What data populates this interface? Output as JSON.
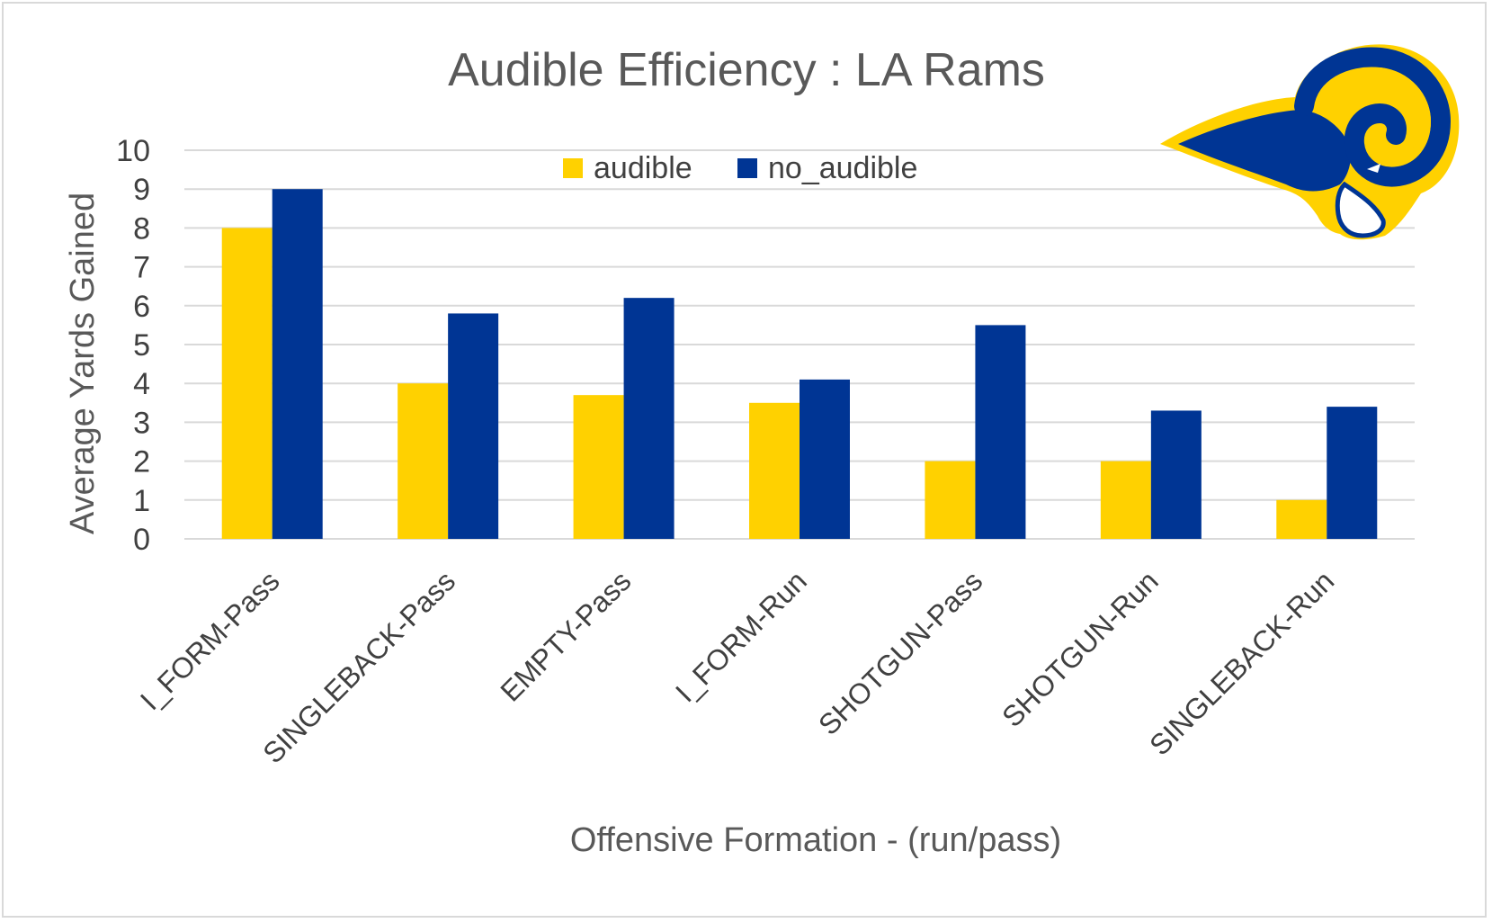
{
  "chart_data": {
    "type": "bar",
    "title": "Audible Efficiency : LA Rams",
    "xlabel": "Offensive Formation - (run/pass)",
    "ylabel": "Average Yards Gained",
    "categories": [
      "I_FORM-Pass",
      "SINGLEBACK-Pass",
      "EMPTY-Pass",
      "I_FORM-Run",
      "SHOTGUN-Pass",
      "SHOTGUN-Run",
      "SINGLEBACK-Run"
    ],
    "series": [
      {
        "name": "audible",
        "color": "#FFD100",
        "values": [
          8.0,
          4.0,
          3.7,
          3.5,
          2.0,
          2.0,
          1.0
        ]
      },
      {
        "name": "no_audible",
        "color": "#003594",
        "values": [
          9.0,
          5.8,
          6.2,
          4.1,
          5.5,
          3.3,
          3.4
        ]
      }
    ],
    "ylim": [
      0,
      10
    ],
    "yticks": [
      "0",
      "1",
      "2",
      "3",
      "4",
      "5",
      "6",
      "7",
      "8",
      "9",
      "10"
    ],
    "grid": true,
    "legend_position": "top-center",
    "logo": "rams-horn-logo"
  }
}
